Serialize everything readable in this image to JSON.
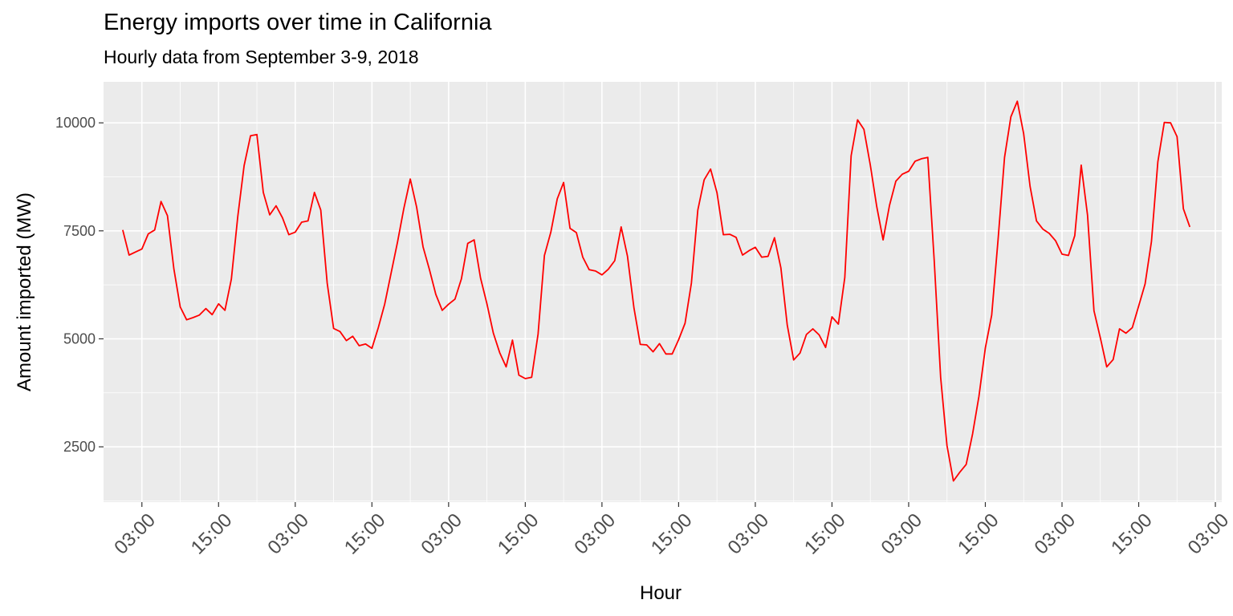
{
  "title": "Energy imports over time in California",
  "subtitle": "Hourly data from September 3-9, 2018",
  "chart_data": {
    "type": "line",
    "title": "Energy imports over time in California",
    "subtitle": "Hourly data from September 3-9, 2018",
    "xlabel": "Hour",
    "ylabel": "Amount imported (MW)",
    "x_start": "2018-09-03 00:00",
    "x_step_hours": 1,
    "xlim": [
      "2018-09-02 21:00",
      "2018-09-10 04:00"
    ],
    "ylim": [
      1220,
      10950
    ],
    "y_ticks": [
      2500,
      5000,
      7500,
      10000
    ],
    "x_tick_labels": [
      "03:00",
      "15:00",
      "03:00",
      "15:00",
      "03:00",
      "15:00",
      "03:00",
      "15:00",
      "03:00",
      "15:00",
      "03:00",
      "15:00",
      "03:00",
      "15:00",
      "03:00"
    ],
    "grid": true,
    "line_color": "#ff0000",
    "panel_color": "#ebebeb",
    "series": [
      {
        "values": [
          7520,
          6940,
          7010,
          7080,
          7430,
          7520,
          8180,
          7850,
          6620,
          5740,
          5440,
          5490,
          5550,
          5700,
          5560,
          5810,
          5660,
          6380,
          7830,
          9010,
          9700,
          9730,
          8390,
          7870,
          8080,
          7800,
          7410,
          7470,
          7700,
          7730,
          8390,
          7980,
          6290,
          5240,
          5170,
          4960,
          5060,
          4840,
          4880,
          4780,
          5260,
          5800,
          6520,
          7240,
          8020,
          8700,
          8050,
          7130,
          6600,
          6030,
          5660,
          5800,
          5920,
          6390,
          7210,
          7290,
          6410,
          5810,
          5130,
          4680,
          4350,
          4970,
          4160,
          4080,
          4110,
          5110,
          6930,
          7470,
          8240,
          8620,
          7560,
          7460,
          6890,
          6600,
          6570,
          6480,
          6610,
          6810,
          7590,
          6910,
          5720,
          4870,
          4860,
          4700,
          4890,
          4650,
          4650,
          4980,
          5360,
          6290,
          7980,
          8680,
          8930,
          8380,
          7410,
          7420,
          7350,
          6940,
          7040,
          7120,
          6890,
          6910,
          7340,
          6640,
          5320,
          4510,
          4670,
          5100,
          5230,
          5090,
          4800,
          5510,
          5340,
          6420,
          9240,
          10070,
          9850,
          9020,
          8060,
          7290,
          8090,
          8650,
          8810,
          8880,
          9110,
          9170,
          9200,
          6810,
          4110,
          2530,
          1710,
          1910,
          2090,
          2800,
          3670,
          4790,
          5550,
          7310,
          9200,
          10140,
          10500,
          9750,
          8530,
          7730,
          7540,
          7440,
          7270,
          6960,
          6930,
          7390,
          9020,
          7860,
          5650,
          5020,
          4350,
          4520,
          5230,
          5130,
          5260,
          5760,
          6270,
          7250,
          9100,
          10010,
          10000,
          9680,
          8010,
          7590
        ]
      }
    ]
  }
}
